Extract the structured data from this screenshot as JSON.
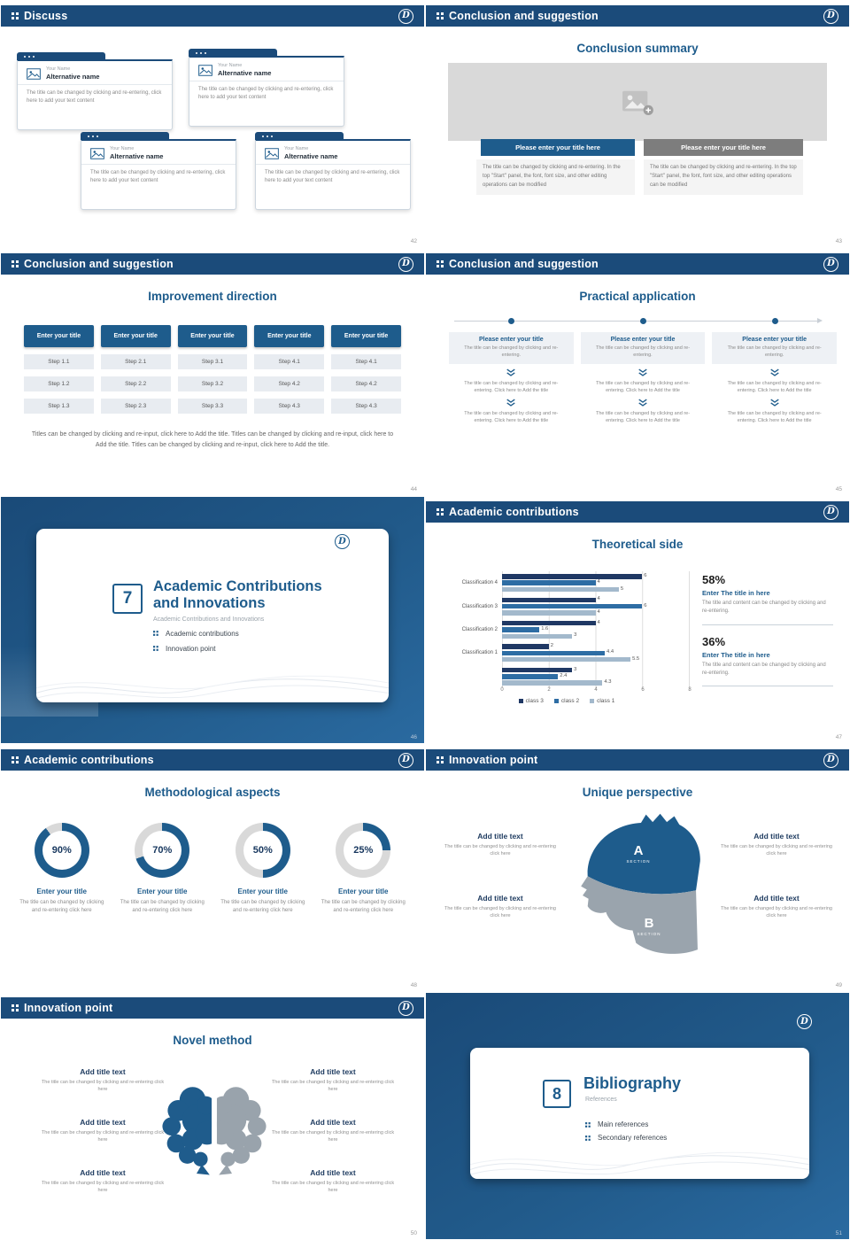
{
  "brand": {
    "logo_letter": "D"
  },
  "colors": {
    "accent": "#1e5c8c",
    "donut_track": "#d9d9d9",
    "header_bg": "#1b4b7a"
  },
  "chart_data": {
    "type": "bar",
    "orientation": "horizontal",
    "title": "Theoretical side",
    "xlim": [
      0,
      8
    ],
    "xticks": [
      "0",
      "2",
      "4",
      "6",
      "8"
    ],
    "legend": [
      {
        "name": "class 3",
        "color": "#1f3864"
      },
      {
        "name": "class 2",
        "color": "#2e6da4"
      },
      {
        "name": "class 1",
        "color": "#a3b9cc"
      }
    ],
    "groups": [
      {
        "label": "Classification 4",
        "bars": [
          {
            "value": 6,
            "series": "class 3"
          },
          {
            "value": 4,
            "series": "class 2"
          },
          {
            "value": 5,
            "series": "class 1"
          }
        ]
      },
      {
        "label": "Classification 3",
        "bars": [
          {
            "value": 4,
            "series": "class 3"
          },
          {
            "value": 6,
            "series": "class 2"
          },
          {
            "value": 4,
            "series": "class 1"
          }
        ]
      },
      {
        "label": "Classification 2",
        "bars": [
          {
            "value": 4,
            "series": "class 3"
          },
          {
            "value": 1.6,
            "series": "class 2"
          },
          {
            "value": 3,
            "series": "class 1"
          }
        ]
      },
      {
        "label": "Classification 1",
        "bars": [
          {
            "value": 2,
            "series": "class 3"
          },
          {
            "value": 4.4,
            "series": "class 2"
          },
          {
            "value": 5.5,
            "series": "class 1"
          }
        ]
      },
      {
        "label": "",
        "bars": [
          {
            "value": 3,
            "series": "class 3"
          },
          {
            "value": 2.4,
            "series": "class 2"
          },
          {
            "value": 4.3,
            "series": "class 1"
          }
        ]
      }
    ]
  },
  "slides": {
    "discuss": {
      "page": "42",
      "header": "Discuss",
      "cards": [
        {
          "name": "Your Name",
          "alt": "Alternative name",
          "body": "The title can be changed by clicking and re-entering, click here to add your text content"
        },
        {
          "name": "Your Name",
          "alt": "Alternative name",
          "body": "The title can be changed by clicking and re-entering, click here to add your text content"
        },
        {
          "name": "Your Name",
          "alt": "Alternative name",
          "body": "The title can be changed by clicking and re-entering, click here to add your text content"
        },
        {
          "name": "Your Name",
          "alt": "Alternative name",
          "body": "The title can be changed by clicking and re-entering, click here to add your text content"
        }
      ]
    },
    "conclusion_summary": {
      "page": "43",
      "header": "Conclusion and suggestion",
      "title": "Conclusion summary",
      "cols": [
        {
          "button": "Please enter your title here",
          "body": "The title can be changed by clicking and re-entering. In the top \"Start\" panel, the font, font size, and other editing operations can be modified"
        },
        {
          "button": "Please enter your title here",
          "body": "The title can be changed by clicking and re-entering. In the top \"Start\" panel, the font, font size, and other editing operations can be modified"
        }
      ]
    },
    "improvement": {
      "page": "44",
      "header": "Conclusion and suggestion",
      "title": "Improvement direction",
      "columns": [
        {
          "button": "Enter your title",
          "steps": [
            "Step 1.1",
            "Step 1.2",
            "Step 1.3"
          ]
        },
        {
          "button": "Enter your title",
          "steps": [
            "Step 2.1",
            "Step 2.2",
            "Step 2.3"
          ]
        },
        {
          "button": "Enter your title",
          "steps": [
            "Step 3.1",
            "Step 3.2",
            "Step 3.3"
          ]
        },
        {
          "button": "Enter your title",
          "steps": [
            "Step 4.1",
            "Step 4.2",
            "Step 4.3"
          ]
        },
        {
          "button": "Enter your title",
          "steps": [
            "Step 4.1",
            "Step 4.2",
            "Step 4.3"
          ]
        }
      ],
      "footer": "Titles can be changed by clicking and re-input, click here to Add the title. Titles can be changed by clicking and re-input, click here to Add the title. Titles can be changed by clicking and re-input, click here to Add the title."
    },
    "practical": {
      "page": "45",
      "header": "Conclusion and suggestion",
      "title": "Practical application",
      "columns": [
        {
          "title": "Please enter your title",
          "body": "The title can be changed by clicking and re-entering.",
          "step1": "The title can be changed by clicking and re-entering. Click here to Add the title",
          "step2": "The title can be changed by clicking and re-entering. Click here to Add the title"
        },
        {
          "title": "Please enter your title",
          "body": "The title can be changed by clicking and re-entering.",
          "step1": "The title can be changed by clicking and re-entering. Click here to Add the title",
          "step2": "The title can be changed by clicking and re-entering. Click here to Add the title"
        },
        {
          "title": "Please enter your title",
          "body": "The title can be changed by clicking and re-entering.",
          "step1": "The title can be changed by clicking and re-entering. Click here to Add the title",
          "step2": "The title can be changed by clicking and re-entering. Click here to Add the title"
        }
      ]
    },
    "section7": {
      "page": "46",
      "number": "7",
      "title_line1": "Academic Contributions",
      "title_line2": "and Innovations",
      "subtitle": "Academic Contributions and Innovations",
      "items": [
        "Academic contributions",
        "Innovation point"
      ]
    },
    "theoretical": {
      "page": "47",
      "header": "Academic contributions",
      "title": "Theoretical side",
      "stats": [
        {
          "pct": "58%",
          "title": "Enter The title in here",
          "body": "The title and content can be changed by clicking and re-entering."
        },
        {
          "pct": "36%",
          "title": "Enter The title in here",
          "body": "The title and content can be changed by clicking and re-entering."
        }
      ]
    },
    "methodological": {
      "page": "48",
      "header": "Academic contributions",
      "title": "Methodological aspects",
      "donuts": [
        {
          "pct": 90,
          "label": "90%",
          "title": "Enter your title",
          "body": "The title can be changed by clicking and re-entering click here"
        },
        {
          "pct": 70,
          "label": "70%",
          "title": "Enter your title",
          "body": "The title can be changed by clicking and re-entering click here"
        },
        {
          "pct": 50,
          "label": "50%",
          "title": "Enter your title",
          "body": "The title can be changed by clicking and re-entering click here"
        },
        {
          "pct": 25,
          "label": "25%",
          "title": "Enter your title",
          "body": "The title can be changed by clicking and re-entering click here"
        }
      ]
    },
    "unique": {
      "page": "49",
      "header": "Innovation point",
      "title": "Unique perspective",
      "sections": [
        {
          "letter": "A",
          "label": "SECTION"
        },
        {
          "letter": "B",
          "label": "SECTION"
        }
      ],
      "left": [
        {
          "title": "Add title text",
          "body": "The title can be changed by clicking and re-entering click here"
        },
        {
          "title": "Add title text",
          "body": "The title can be changed by clicking and re-entering click here"
        }
      ],
      "right": [
        {
          "title": "Add title text",
          "body": "The title can be changed by clicking and re-entering click here"
        },
        {
          "title": "Add title text",
          "body": "The title can be changed by clicking and re-entering click here"
        }
      ]
    },
    "novel": {
      "page": "50",
      "header": "Innovation point",
      "title": "Novel method",
      "left": [
        {
          "title": "Add title text",
          "body": "The title can be changed by clicking and re-entering click here"
        },
        {
          "title": "Add title text",
          "body": "The title can be changed by clicking and re-entering click here"
        },
        {
          "title": "Add title text",
          "body": "The title can be changed by clicking and re-entering click here"
        }
      ],
      "right": [
        {
          "title": "Add title text",
          "body": "The title can be changed by clicking and re-entering click here"
        },
        {
          "title": "Add title text",
          "body": "The title can be changed by clicking and re-entering click here"
        },
        {
          "title": "Add title text",
          "body": "The title can be changed by clicking and re-entering click here"
        }
      ]
    },
    "section8": {
      "page": "51",
      "number": "8",
      "title": "Bibliography",
      "subtitle": "References",
      "items": [
        "Main references",
        "Secondary references"
      ]
    }
  }
}
